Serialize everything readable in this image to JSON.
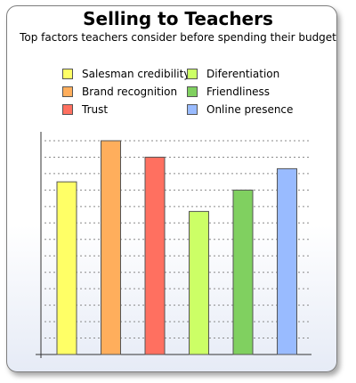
{
  "chart_data": {
    "type": "bar",
    "title": "Selling to Teachers",
    "subtitle": "Top factors teachers consider before spending their budget",
    "xlabel": "",
    "ylabel": "",
    "ylim": [
      0,
      13
    ],
    "grid": true,
    "legend_placement": "top",
    "categories": [
      "Salesman credibility",
      "Brand recognition",
      "Trust",
      "Diferentiation",
      "Friendliness",
      "Online presence"
    ],
    "values": [
      10.5,
      13,
      12,
      8.7,
      10,
      11.3
    ],
    "colors": [
      "#ffff66",
      "#ffae5c",
      "#ff7060",
      "#ccff66",
      "#80d060",
      "#99bbff"
    ]
  }
}
